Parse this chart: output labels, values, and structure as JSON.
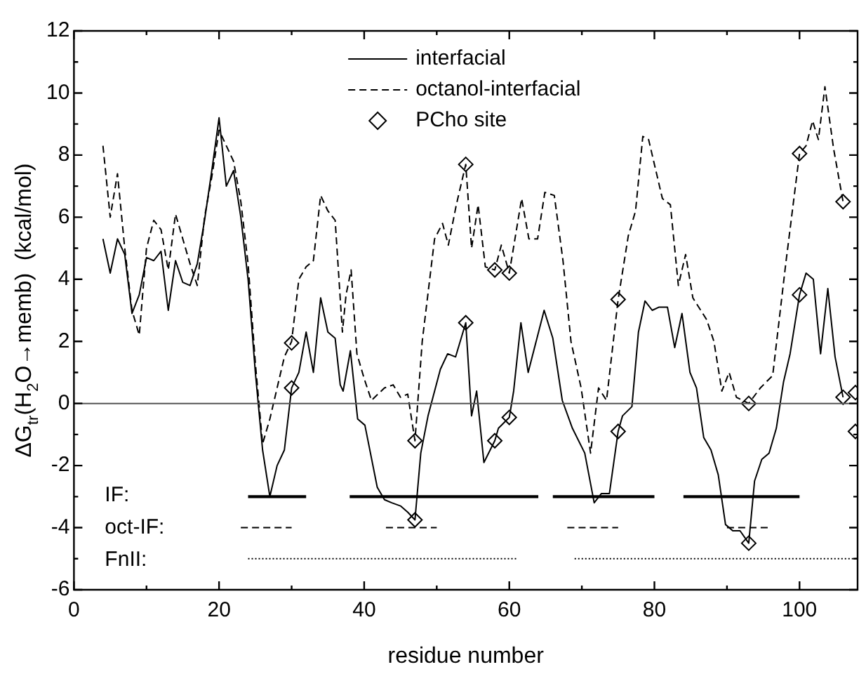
{
  "chart_data": {
    "type": "line",
    "xlabel": "residue number",
    "ylabel": "ΔG$_{tr}$(H$_{2}$O→memb)  (kcal/mol)",
    "xlim": [
      0,
      108
    ],
    "ylim": [
      -6,
      12
    ],
    "xticks": [
      0,
      {
        "value": 10,
        "label": null
      },
      20,
      {
        "value": 30,
        "label": null
      },
      40,
      {
        "value": 50,
        "label": null
      },
      60,
      {
        "value": 70,
        "label": null
      },
      80,
      {
        "value": 90,
        "label": null
      },
      100
    ],
    "yticks": [
      -6,
      {
        "value": -5,
        "label": null
      },
      -4,
      {
        "value": -3,
        "label": null
      },
      -2,
      {
        "value": -1,
        "label": null
      },
      0,
      {
        "value": 1,
        "label": null
      },
      2,
      {
        "value": 3,
        "label": null
      },
      4,
      {
        "value": 5,
        "label": null
      },
      6,
      {
        "value": 7,
        "label": null
      },
      8,
      {
        "value": 9,
        "label": null
      },
      10,
      {
        "value": 11,
        "label": null
      },
      12
    ],
    "grid": false,
    "legend": "top",
    "marker": "none",
    "ref_lines": [
      {
        "axis": "y",
        "value": 0,
        "color": "#555555"
      }
    ],
    "annotations": [
      "IF:",
      "oct-IF:",
      "FnII:"
    ],
    "series": [
      {
        "name": "interfacial",
        "type": "line",
        "color": "#000000",
        "line_style": "solid",
        "x": [
          4,
          5,
          6,
          7,
          8,
          9,
          10,
          11,
          12,
          13,
          14,
          15,
          16,
          17,
          18,
          19,
          20,
          21,
          22,
          23,
          24,
          25,
          26,
          27,
          28,
          29,
          30,
          31,
          32,
          33,
          34,
          35,
          36,
          36.7,
          37.1,
          38.1,
          39.1,
          40.1,
          41.8,
          42.8,
          43.8,
          45,
          46,
          47,
          47.8,
          48.8,
          50.5,
          51.5,
          52.6,
          54,
          54.8,
          55.5,
          56.5,
          58,
          58.5,
          60,
          60.6,
          61.6,
          62.6,
          64.8,
          66,
          67.3,
          68.7,
          70.4,
          71.7,
          72.7,
          73.8,
          75,
          75.6,
          76.9,
          77.8,
          78.7,
          79.7,
          80.6,
          81.8,
          82.8,
          83.8,
          84.9,
          85.8,
          86.8,
          87.8,
          88.8,
          89.8,
          90.8,
          91.8,
          93,
          93.8,
          94.8,
          95.8,
          96.8,
          97.8,
          98.7,
          100,
          100.9,
          101.9,
          102.9,
          103.9,
          104.9,
          106
        ],
        "values": [
          5.3,
          4.2,
          5.3,
          4.8,
          2.9,
          3.5,
          4.7,
          4.6,
          4.9,
          3.0,
          4.6,
          3.9,
          3.8,
          4.5,
          5.9,
          7.5,
          9.2,
          7.0,
          7.5,
          6.0,
          4.0,
          1.0,
          -1.5,
          -3.0,
          -2.0,
          -1.5,
          0.5,
          1.0,
          2.3,
          1.0,
          3.4,
          2.3,
          2.1,
          0.6,
          0.4,
          1.7,
          -0.5,
          -0.7,
          -2.7,
          -3.1,
          -3.2,
          -3.3,
          -3.5,
          -3.75,
          -1.6,
          -0.4,
          1.1,
          1.6,
          1.5,
          2.6,
          -0.4,
          0.4,
          -1.9,
          -1.2,
          -0.8,
          -0.45,
          0.4,
          2.6,
          1.0,
          3.0,
          2.1,
          0.1,
          -0.8,
          -1.6,
          -3.2,
          -2.9,
          -2.9,
          -0.9,
          -0.4,
          -0.1,
          2.3,
          3.3,
          3.0,
          3.1,
          3.1,
          1.8,
          2.9,
          1.0,
          0.5,
          -1.1,
          -1.5,
          -2.3,
          -3.9,
          -4.1,
          -4.1,
          -4.5,
          -2.5,
          -1.8,
          -1.6,
          -0.8,
          0.7,
          1.6,
          3.5,
          4.2,
          4.0,
          1.6,
          3.7,
          1.5,
          0.2
        ]
      },
      {
        "name": "octanol-interfacial",
        "type": "line",
        "color": "#000000",
        "line_style": "dashed",
        "x": [
          4,
          5,
          6,
          7,
          8,
          9,
          10,
          11,
          12,
          13,
          14,
          15,
          16,
          17,
          18,
          19,
          20,
          21,
          22,
          23,
          24,
          25,
          26,
          27,
          28,
          29,
          30,
          31,
          32,
          33,
          34,
          35,
          36,
          37,
          37.5,
          38.2,
          39,
          40,
          41,
          42.8,
          44,
          45,
          46,
          47,
          48,
          49.7,
          50.8,
          51.6,
          52.7,
          54,
          54.8,
          55.7,
          56.7,
          58,
          58.9,
          60,
          61.7,
          62.7,
          63.9,
          64.9,
          66.2,
          67.4,
          68.5,
          69.9,
          71.2,
          72.3,
          73.4,
          75,
          76.4,
          77.4,
          78.4,
          79.2,
          81.1,
          82.2,
          83.3,
          84.3,
          85.3,
          87.2,
          88.2,
          89.3,
          90.3,
          91.3,
          93,
          94.6,
          96.3,
          98.1,
          100,
          100.9,
          101.8,
          102.6,
          103.5,
          104.7,
          106
        ],
        "values": [
          8.3,
          6.0,
          7.4,
          5.0,
          3.0,
          2.2,
          5.0,
          5.9,
          5.6,
          4.3,
          6.1,
          5.3,
          4.5,
          3.8,
          6.0,
          7.3,
          8.8,
          8.3,
          7.8,
          6.5,
          4.5,
          1.3,
          -1.3,
          -0.5,
          0.5,
          1.5,
          2.0,
          4.0,
          4.4,
          4.6,
          6.7,
          6.2,
          5.9,
          2.3,
          3.5,
          4.3,
          1.6,
          0.8,
          0.1,
          0.5,
          0.6,
          0.2,
          0.3,
          -1.2,
          2.0,
          5.3,
          5.8,
          5.1,
          6.4,
          7.7,
          5.0,
          6.4,
          4.4,
          4.3,
          5.1,
          4.2,
          6.6,
          5.3,
          5.3,
          6.8,
          6.7,
          4.6,
          2.0,
          0.5,
          -1.6,
          0.5,
          0.1,
          3.35,
          5.4,
          6.2,
          8.6,
          8.5,
          6.6,
          6.4,
          3.8,
          4.8,
          3.4,
          2.7,
          2.0,
          0.4,
          1.0,
          0.2,
          0.0,
          0.5,
          0.9,
          4.5,
          8.05,
          8.3,
          9.1,
          8.5,
          10.2,
          8.2,
          6.5
        ]
      },
      {
        "name": "PCho site",
        "type": "scatter",
        "color": "#000000",
        "marker": "diamond",
        "x": [
          30,
          30,
          47,
          47,
          54,
          54,
          58,
          58,
          60,
          60,
          75,
          75,
          93,
          93,
          100,
          100,
          106,
          106,
          107.7,
          107.7
        ],
        "values": [
          1.95,
          0.5,
          -1.2,
          -3.75,
          7.7,
          2.6,
          4.3,
          -1.2,
          4.2,
          -0.45,
          3.35,
          -0.9,
          0.0,
          -4.5,
          8.05,
          3.5,
          6.5,
          0.2,
          0.35,
          -0.9
        ]
      },
      {
        "type": "line",
        "color": "#000000",
        "line_style": "solid",
        "x": [
          24,
          32
        ],
        "values": [
          -3,
          -3
        ]
      },
      {
        "type": "line",
        "color": "#000000",
        "line_style": "solid",
        "x": [
          38,
          64
        ],
        "values": [
          -3,
          -3
        ]
      },
      {
        "type": "line",
        "color": "#000000",
        "line_style": "solid",
        "x": [
          66,
          80
        ],
        "values": [
          -3,
          -3
        ]
      },
      {
        "type": "line",
        "color": "#000000",
        "line_style": "solid",
        "x": [
          84,
          100
        ],
        "values": [
          -3,
          -3
        ]
      },
      {
        "type": "line",
        "color": "#000000",
        "line_style": "dashed",
        "x": [
          23,
          30
        ],
        "values": [
          -4,
          -4
        ]
      },
      {
        "type": "line",
        "color": "#000000",
        "line_style": "dashed",
        "x": [
          43,
          50
        ],
        "values": [
          -4,
          -4
        ]
      },
      {
        "type": "line",
        "color": "#000000",
        "line_style": "dashed",
        "x": [
          68,
          75
        ],
        "values": [
          -4,
          -4
        ]
      },
      {
        "type": "line",
        "color": "#000000",
        "line_style": "dashed",
        "x": [
          90,
          96
        ],
        "values": [
          -4,
          -4
        ]
      },
      {
        "type": "line",
        "color": "#000000",
        "line_style": "dotted",
        "x": [
          24,
          61
        ],
        "values": [
          -5,
          -5
        ]
      },
      {
        "type": "line",
        "color": "#000000",
        "line_style": "dotted",
        "x": [
          69,
          108
        ],
        "values": [
          -5,
          -5
        ]
      }
    ]
  }
}
